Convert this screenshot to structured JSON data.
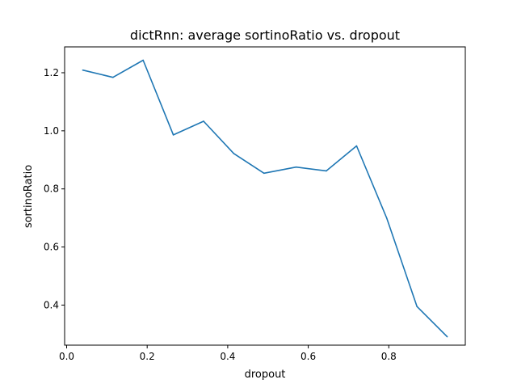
{
  "chart_data": {
    "type": "line",
    "title": "dictRnn: average sortinoRatio vs. dropout",
    "xlabel": "dropout",
    "ylabel": "sortinoRatio",
    "xlim": [
      -0.005,
      0.99
    ],
    "ylim": [
      0.262,
      1.289
    ],
    "xticks": [
      0.0,
      0.2,
      0.4,
      0.6,
      0.8
    ],
    "xtick_labels": [
      "0.0",
      "0.2",
      "0.4",
      "0.6",
      "0.8"
    ],
    "yticks": [
      0.4,
      0.6,
      0.8,
      1.0,
      1.2
    ],
    "ytick_labels": [
      "0.4",
      "0.6",
      "0.8",
      "1.0",
      "1.2"
    ],
    "grid": false,
    "series": [
      {
        "color": "#1f77b4",
        "x": [
          0.04,
          0.115,
          0.19,
          0.265,
          0.34,
          0.415,
          0.49,
          0.57,
          0.645,
          0.72,
          0.795,
          0.87,
          0.945
        ],
        "y": [
          1.209,
          1.184,
          1.243,
          0.986,
          1.033,
          0.922,
          0.854,
          0.875,
          0.862,
          0.948,
          0.699,
          0.395,
          0.291
        ]
      }
    ]
  }
}
